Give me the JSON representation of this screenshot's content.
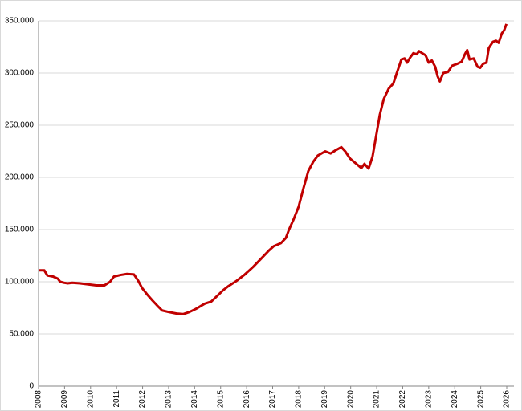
{
  "chart_data": {
    "type": "line",
    "x": [
      2008.0,
      2008.22,
      2008.34,
      2008.56,
      2008.74,
      2008.83,
      2008.99,
      2009.11,
      2009.3,
      2009.6,
      2009.91,
      2010.22,
      2010.53,
      2010.75,
      2010.9,
      2011.15,
      2011.4,
      2011.67,
      2011.83,
      2011.98,
      2012.17,
      2012.38,
      2012.57,
      2012.75,
      2013.0,
      2013.31,
      2013.56,
      2013.8,
      2014.05,
      2014.39,
      2014.64,
      2014.85,
      2015.1,
      2015.31,
      2015.62,
      2015.93,
      2016.24,
      2016.55,
      2016.86,
      2017.04,
      2017.32,
      2017.51,
      2017.63,
      2017.81,
      2018.0,
      2018.19,
      2018.37,
      2018.56,
      2018.74,
      2019.02,
      2019.23,
      2019.42,
      2019.64,
      2019.79,
      2019.98,
      2020.22,
      2020.41,
      2020.53,
      2020.69,
      2020.84,
      2020.96,
      2021.12,
      2021.27,
      2021.46,
      2021.64,
      2021.8,
      2021.95,
      2022.07,
      2022.17,
      2022.29,
      2022.41,
      2022.54,
      2022.63,
      2022.75,
      2022.88,
      2023.0,
      2023.12,
      2023.25,
      2023.34,
      2023.43,
      2023.56,
      2023.74,
      2023.9,
      2024.11,
      2024.27,
      2024.39,
      2024.48,
      2024.57,
      2024.73,
      2024.88,
      2024.98,
      2025.1,
      2025.22,
      2025.31,
      2025.47,
      2025.59,
      2025.69,
      2025.81,
      2025.9,
      2025.99
    ],
    "series": [
      {
        "color": "#c00000",
        "values": [
          111000,
          111000,
          106000,
          105000,
          103000,
          100000,
          99000,
          98500,
          99000,
          98500,
          97500,
          96500,
          96500,
          100000,
          105000,
          106500,
          107500,
          107000,
          101000,
          94000,
          88000,
          82000,
          77000,
          72500,
          71000,
          69500,
          69000,
          71000,
          74000,
          79000,
          81000,
          86000,
          92000,
          96000,
          101000,
          107000,
          114000,
          122000,
          130000,
          134000,
          137000,
          142000,
          150000,
          160000,
          172000,
          190000,
          206000,
          215000,
          221000,
          225000,
          223000,
          226000,
          229000,
          225000,
          218000,
          213000,
          209000,
          213000,
          208500,
          220000,
          237000,
          260000,
          275000,
          285000,
          290000,
          302000,
          313000,
          314000,
          310000,
          315000,
          319000,
          318000,
          321000,
          319000,
          317000,
          310000,
          312000,
          306000,
          297000,
          292000,
          300000,
          301000,
          307000,
          309000,
          311000,
          318000,
          322000,
          313000,
          314000,
          306000,
          305000,
          309000,
          310000,
          324000,
          330000,
          331000,
          329000,
          338000,
          341000,
          347000
        ]
      }
    ],
    "xlim": [
      2008,
      2026
    ],
    "xticks": [
      2008,
      2009,
      2010,
      2011,
      2012,
      2013,
      2014,
      2015,
      2016,
      2017,
      2018,
      2019,
      2020,
      2021,
      2022,
      2023,
      2024,
      2025,
      2026
    ],
    "ylim": [
      0,
      350000
    ],
    "yticks": [
      0,
      {
        "value": 50000,
        "label": "50.000"
      },
      {
        "value": 100000,
        "label": "100.000"
      },
      {
        "value": 150000,
        "label": "150.000"
      },
      {
        "value": 200000,
        "label": "200.000"
      },
      {
        "value": 250000,
        "label": "250.000"
      },
      {
        "value": 300000,
        "label": "300.000"
      },
      {
        "value": 350000,
        "label": "350.000"
      }
    ],
    "grid": true
  }
}
